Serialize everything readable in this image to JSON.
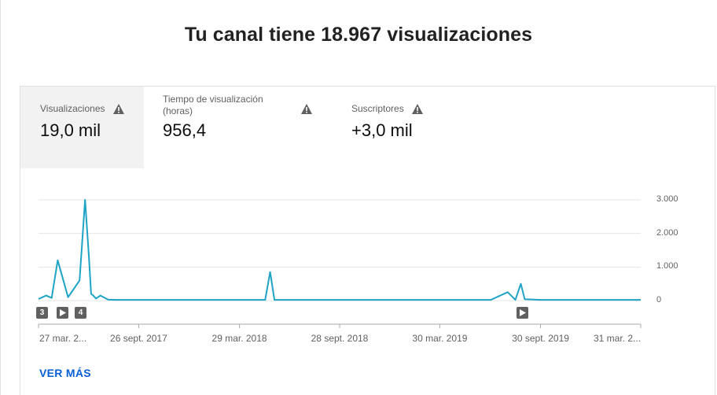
{
  "header": {
    "title": "Tu canal tiene 18.967 visualizaciones"
  },
  "tabs": [
    {
      "label": "Visualizaciones",
      "value": "19,0 mil",
      "active": true,
      "icon": "warning-icon"
    },
    {
      "label": "Tiempo de visualización (horas)",
      "value": "956,4",
      "active": false,
      "icon": "warning-icon"
    },
    {
      "label": "Suscriptores",
      "value": "+3,0 mil",
      "active": false,
      "icon": "warning-icon"
    }
  ],
  "badges": [
    "3",
    "4"
  ],
  "footer": {
    "link_label": "VER MÁS"
  },
  "colors": {
    "line": "#1fa4c7",
    "link": "#065fd4",
    "active_tab_bg": "#f2f2f2"
  },
  "chart_data": {
    "type": "line",
    "series": [
      {
        "x": [
          "2017-03-27",
          "2017-04-10",
          "2017-04-20",
          "2017-05-01",
          "2017-05-20",
          "2017-06-10",
          "2017-06-20",
          "2017-06-27",
          "2017-07-01",
          "2017-07-05",
          "2017-07-10",
          "2017-07-18",
          "2017-08-01",
          "2017-08-15",
          "2017-09-01",
          "2017-10-01",
          "2017-12-01",
          "2018-03-01",
          "2018-05-15",
          "2018-05-24",
          "2018-06-01",
          "2018-09-01",
          "2019-03-01",
          "2019-07-01",
          "2019-08-01",
          "2019-08-15",
          "2019-08-25",
          "2019-09-01",
          "2019-10-01",
          "2020-03-31"
        ],
        "y": [
          50,
          150,
          80,
          1200,
          100,
          600,
          3000,
          1300,
          200,
          150,
          60,
          150,
          30,
          20,
          20,
          20,
          20,
          20,
          20,
          850,
          20,
          20,
          20,
          20,
          250,
          20,
          500,
          40,
          20,
          20
        ]
      }
    ],
    "x_tick_labels": [
      "27 mar. 2...",
      "26 sept. 2017",
      "29 mar. 2018",
      "28 sept. 2018",
      "30 mar. 2019",
      "30 sept. 2019",
      "31 mar. 2..."
    ],
    "y_tick_labels": [
      "3.000",
      "2.000",
      "1.000",
      "0"
    ],
    "ylim": [
      0,
      3000
    ],
    "grid": true
  }
}
